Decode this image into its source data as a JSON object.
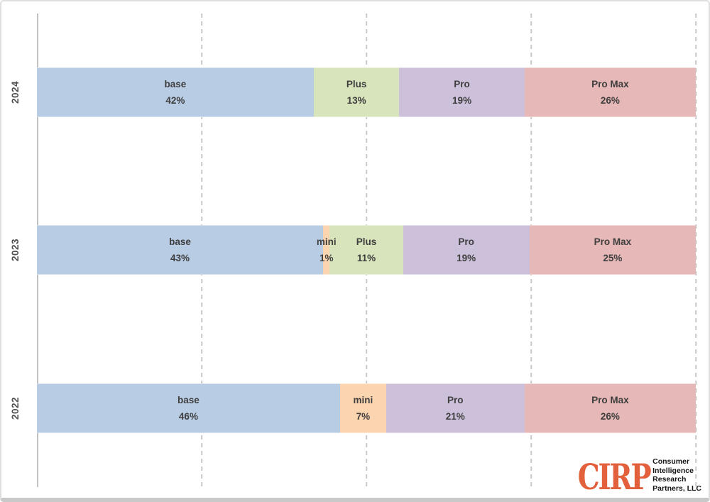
{
  "chart_data": {
    "type": "bar",
    "orientation": "horizontal",
    "stacked": true,
    "normalized_100": true,
    "unit": "%",
    "title": "",
    "xlabel": "",
    "ylabel": "",
    "xlim": [
      0,
      100
    ],
    "legend": "none",
    "grid_style": "dashed",
    "gridlines_percent": [
      25,
      50,
      75,
      100
    ],
    "categories": [
      "2024",
      "2023",
      "2022"
    ],
    "rows": [
      {
        "year": "2024",
        "segments": [
          {
            "name": "base",
            "value": 42
          },
          {
            "name": "Plus",
            "value": 13
          },
          {
            "name": "Pro",
            "value": 19
          },
          {
            "name": "Pro Max",
            "value": 26
          }
        ]
      },
      {
        "year": "2023",
        "segments": [
          {
            "name": "base",
            "value": 43
          },
          {
            "name": "mini",
            "value": 1
          },
          {
            "name": "Plus",
            "value": 11
          },
          {
            "name": "Pro",
            "value": 19
          },
          {
            "name": "Pro Max",
            "value": 25
          }
        ]
      },
      {
        "year": "2022",
        "segments": [
          {
            "name": "base",
            "value": 46
          },
          {
            "name": "mini",
            "value": 7
          },
          {
            "name": "Pro",
            "value": 21
          },
          {
            "name": "Pro Max",
            "value": 26
          }
        ]
      }
    ],
    "colors": {
      "base": "#b8cce4",
      "mini": "#fbd5b0",
      "Plus": "#d8e4bc",
      "Pro": "#ccc0da",
      "Pro Max": "#e6b8b7"
    },
    "text_color": "#3e3e3e",
    "gridline_color": "#c9c9c9"
  },
  "branding": {
    "logo_acronym": "CIRP",
    "logo_color": "#e2603c",
    "org_lines": [
      "Consumer",
      "Intelligence",
      "Research",
      "Partners, LLC"
    ]
  }
}
